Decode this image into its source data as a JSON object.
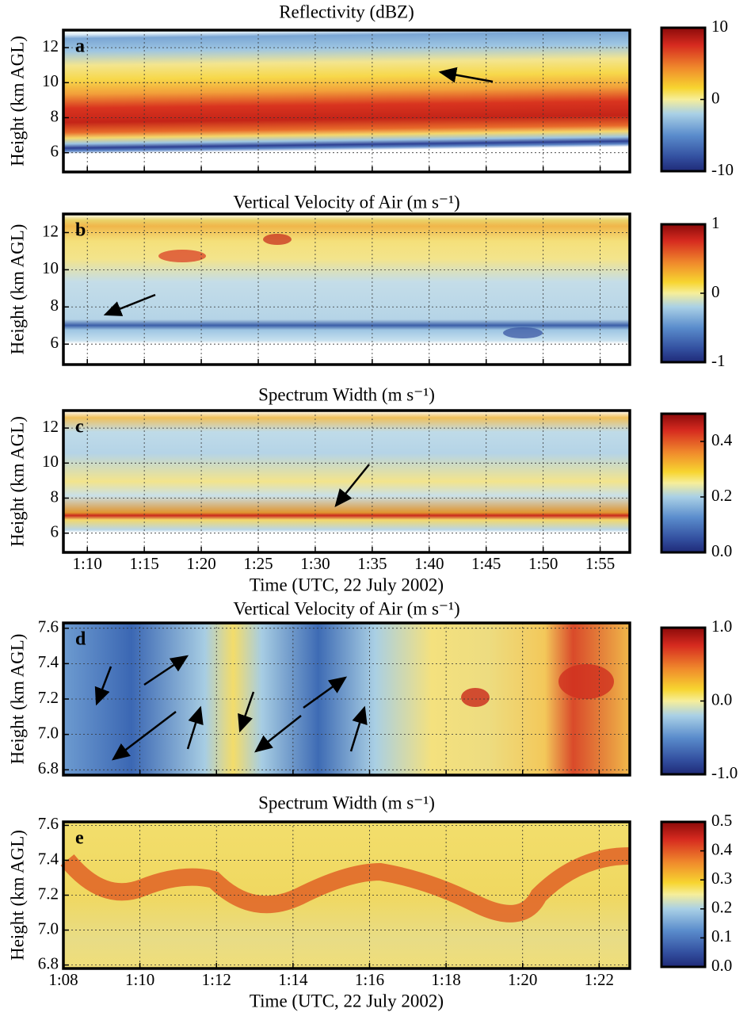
{
  "chart_data": [
    {
      "type": "heatmap",
      "panel_label": "a",
      "title": "Reflectivity (dBZ)",
      "ylabel": "Height (km AGL)",
      "ylim": [
        4.9,
        13.0
      ],
      "yticks": [
        6,
        8,
        10,
        12
      ],
      "xlim": [
        67.9,
        117.6
      ],
      "xticks": [
        {
          "value": 70,
          "label": null
        },
        {
          "value": 75,
          "label": null
        },
        {
          "value": 80,
          "label": null
        },
        {
          "value": 85,
          "label": null
        },
        {
          "value": 90,
          "label": null
        },
        {
          "value": 95,
          "label": null
        },
        {
          "value": 100,
          "label": null
        },
        {
          "value": 105,
          "label": null
        },
        {
          "value": 110,
          "label": null
        },
        {
          "value": 115,
          "label": null
        }
      ],
      "grid": true,
      "clim": [
        -10,
        10
      ],
      "cticks": [
        -10,
        0,
        10
      ]
    },
    {
      "type": "heatmap",
      "panel_label": "b",
      "title": "Vertical Velocity of Air (m s⁻¹)",
      "ylabel": "Height (km AGL)",
      "ylim": [
        4.9,
        13.0
      ],
      "yticks": [
        6,
        8,
        10,
        12
      ],
      "xlim": [
        67.9,
        117.6
      ],
      "xticks": [
        {
          "value": 70,
          "label": null
        },
        {
          "value": 75,
          "label": null
        },
        {
          "value": 80,
          "label": null
        },
        {
          "value": 85,
          "label": null
        },
        {
          "value": 90,
          "label": null
        },
        {
          "value": 95,
          "label": null
        },
        {
          "value": 100,
          "label": null
        },
        {
          "value": 105,
          "label": null
        },
        {
          "value": 110,
          "label": null
        },
        {
          "value": 115,
          "label": null
        }
      ],
      "grid": true,
      "clim": [
        -1,
        1
      ],
      "cticks": [
        -1,
        0,
        1
      ]
    },
    {
      "type": "heatmap",
      "panel_label": "c",
      "title": "Spectrum Width (m s⁻¹)",
      "ylabel": "Height (km AGL)",
      "xlabel": "Time (UTC, 22 July 2002)",
      "ylim": [
        4.9,
        13.0
      ],
      "yticks": [
        6,
        8,
        10,
        12
      ],
      "xlim": [
        67.9,
        117.6
      ],
      "xticks": [
        {
          "value": 70,
          "label": "1:10"
        },
        {
          "value": 75,
          "label": "1:15"
        },
        {
          "value": 80,
          "label": "1:20"
        },
        {
          "value": 85,
          "label": "1:25"
        },
        {
          "value": 90,
          "label": "1:30"
        },
        {
          "value": 95,
          "label": "1:35"
        },
        {
          "value": 100,
          "label": "1:40"
        },
        {
          "value": 105,
          "label": "1:45"
        },
        {
          "value": 110,
          "label": "1:50"
        },
        {
          "value": 115,
          "label": "1:55"
        }
      ],
      "grid": true,
      "clim": [
        0,
        0.5
      ],
      "cticks": [
        {
          "value": 0,
          "label": "0.0"
        },
        0.2,
        0.4
      ]
    },
    {
      "type": "heatmap",
      "panel_label": "d",
      "title": "Vertical Velocity of Air (m s⁻¹)",
      "ylabel": "Height (km AGL)",
      "ylim": [
        6.77,
        7.63
      ],
      "yticks": [
        6.8,
        {
          "value": 7,
          "label": "7.0"
        },
        7.2,
        7.4,
        7.6
      ],
      "xlim": [
        68,
        82.8
      ],
      "xticks": [
        {
          "value": 68,
          "label": null
        },
        {
          "value": 70,
          "label": null
        },
        {
          "value": 72,
          "label": null
        },
        {
          "value": 74,
          "label": null
        },
        {
          "value": 76,
          "label": null
        },
        {
          "value": 78,
          "label": null
        },
        {
          "value": 80,
          "label": null
        },
        {
          "value": 82,
          "label": null
        }
      ],
      "grid": true,
      "clim": [
        -1,
        1
      ],
      "cticks": [
        {
          "value": -1,
          "label": "-1.0"
        },
        {
          "value": 0,
          "label": "0.0"
        },
        {
          "value": 1,
          "label": "1.0"
        }
      ]
    },
    {
      "type": "heatmap",
      "panel_label": "e",
      "title": "Spectrum Width (m s⁻¹)",
      "ylabel": "Height (km AGL)",
      "xlabel": "Time (UTC, 22 July 2002)",
      "ylim": [
        6.78,
        7.62
      ],
      "yticks": [
        6.8,
        {
          "value": 7,
          "label": "7.0"
        },
        7.2,
        7.4,
        7.6
      ],
      "xlim": [
        68,
        82.8
      ],
      "xticks": [
        {
          "value": 68,
          "label": "1:08"
        },
        {
          "value": 70,
          "label": "1:10"
        },
        {
          "value": 72,
          "label": "1:12"
        },
        {
          "value": 74,
          "label": "1:14"
        },
        {
          "value": 76,
          "label": "1:16"
        },
        {
          "value": 78,
          "label": "1:18"
        },
        {
          "value": 80,
          "label": "1:20"
        },
        {
          "value": 82,
          "label": "1:22"
        }
      ],
      "grid": true,
      "clim": [
        0,
        0.5
      ],
      "cticks": [
        {
          "value": 0,
          "label": "0.0"
        },
        0.1,
        0.2,
        0.3,
        0.4,
        0.5
      ]
    }
  ]
}
